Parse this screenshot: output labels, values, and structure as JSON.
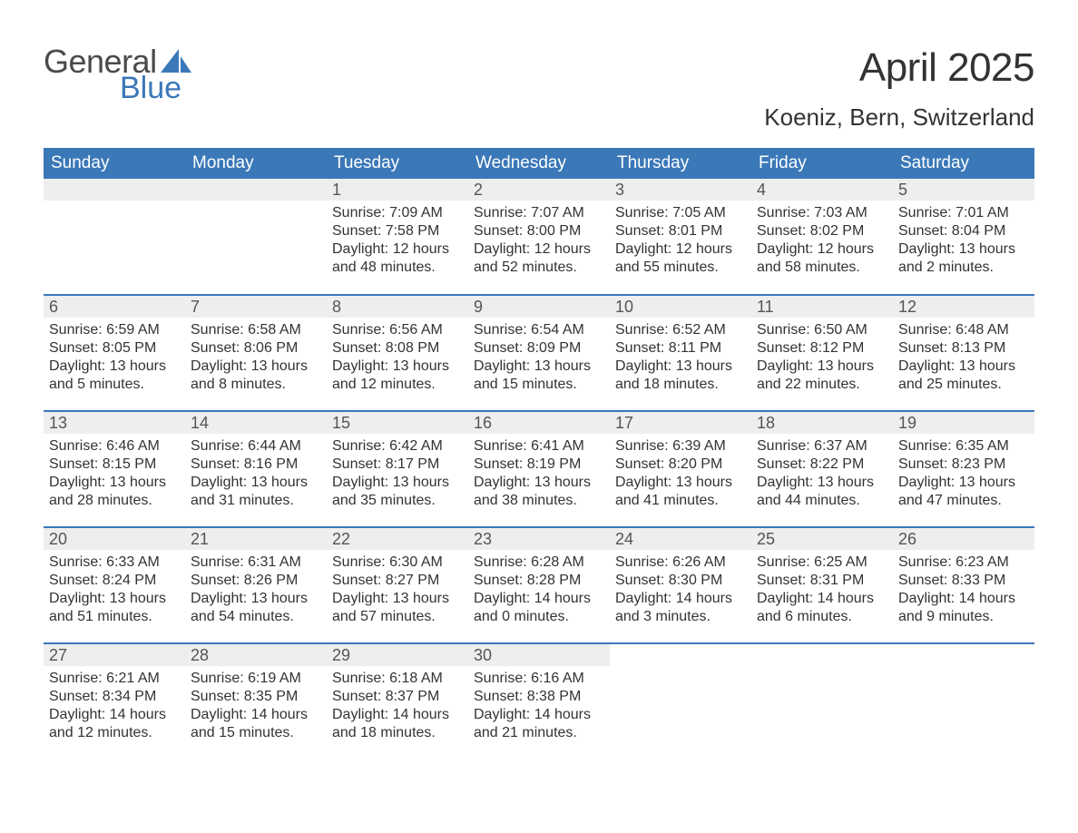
{
  "logo": {
    "word1": "General",
    "word2": "Blue"
  },
  "title": {
    "month": "April 2025",
    "location": "Koeniz, Bern, Switzerland"
  },
  "style": {
    "header_bg": "#3b78b8",
    "header_text": "#ffffff",
    "daynum_bg": "#eeeeee",
    "row_border": "#3b78b8",
    "body_text": "#333333",
    "logo_gray": "#4a4a4a",
    "logo_blue": "#3b78b8",
    "page_bg": "#ffffff",
    "title_fontsize": 44,
    "location_fontsize": 26,
    "dayheader_fontsize": 19,
    "daynum_fontsize": 18,
    "body_fontsize": 16
  },
  "day_headers": [
    "Sunday",
    "Monday",
    "Tuesday",
    "Wednesday",
    "Thursday",
    "Friday",
    "Saturday"
  ],
  "weeks": [
    [
      {
        "n": "",
        "blank": true
      },
      {
        "n": "",
        "blank": true
      },
      {
        "n": "1",
        "sunrise": "Sunrise: 7:09 AM",
        "sunset": "Sunset: 7:58 PM",
        "daylight": "Daylight: 12 hours and 48 minutes."
      },
      {
        "n": "2",
        "sunrise": "Sunrise: 7:07 AM",
        "sunset": "Sunset: 8:00 PM",
        "daylight": "Daylight: 12 hours and 52 minutes."
      },
      {
        "n": "3",
        "sunrise": "Sunrise: 7:05 AM",
        "sunset": "Sunset: 8:01 PM",
        "daylight": "Daylight: 12 hours and 55 minutes."
      },
      {
        "n": "4",
        "sunrise": "Sunrise: 7:03 AM",
        "sunset": "Sunset: 8:02 PM",
        "daylight": "Daylight: 12 hours and 58 minutes."
      },
      {
        "n": "5",
        "sunrise": "Sunrise: 7:01 AM",
        "sunset": "Sunset: 8:04 PM",
        "daylight": "Daylight: 13 hours and 2 minutes."
      }
    ],
    [
      {
        "n": "6",
        "sunrise": "Sunrise: 6:59 AM",
        "sunset": "Sunset: 8:05 PM",
        "daylight": "Daylight: 13 hours and 5 minutes."
      },
      {
        "n": "7",
        "sunrise": "Sunrise: 6:58 AM",
        "sunset": "Sunset: 8:06 PM",
        "daylight": "Daylight: 13 hours and 8 minutes."
      },
      {
        "n": "8",
        "sunrise": "Sunrise: 6:56 AM",
        "sunset": "Sunset: 8:08 PM",
        "daylight": "Daylight: 13 hours and 12 minutes."
      },
      {
        "n": "9",
        "sunrise": "Sunrise: 6:54 AM",
        "sunset": "Sunset: 8:09 PM",
        "daylight": "Daylight: 13 hours and 15 minutes."
      },
      {
        "n": "10",
        "sunrise": "Sunrise: 6:52 AM",
        "sunset": "Sunset: 8:11 PM",
        "daylight": "Daylight: 13 hours and 18 minutes."
      },
      {
        "n": "11",
        "sunrise": "Sunrise: 6:50 AM",
        "sunset": "Sunset: 8:12 PM",
        "daylight": "Daylight: 13 hours and 22 minutes."
      },
      {
        "n": "12",
        "sunrise": "Sunrise: 6:48 AM",
        "sunset": "Sunset: 8:13 PM",
        "daylight": "Daylight: 13 hours and 25 minutes."
      }
    ],
    [
      {
        "n": "13",
        "sunrise": "Sunrise: 6:46 AM",
        "sunset": "Sunset: 8:15 PM",
        "daylight": "Daylight: 13 hours and 28 minutes."
      },
      {
        "n": "14",
        "sunrise": "Sunrise: 6:44 AM",
        "sunset": "Sunset: 8:16 PM",
        "daylight": "Daylight: 13 hours and 31 minutes."
      },
      {
        "n": "15",
        "sunrise": "Sunrise: 6:42 AM",
        "sunset": "Sunset: 8:17 PM",
        "daylight": "Daylight: 13 hours and 35 minutes."
      },
      {
        "n": "16",
        "sunrise": "Sunrise: 6:41 AM",
        "sunset": "Sunset: 8:19 PM",
        "daylight": "Daylight: 13 hours and 38 minutes."
      },
      {
        "n": "17",
        "sunrise": "Sunrise: 6:39 AM",
        "sunset": "Sunset: 8:20 PM",
        "daylight": "Daylight: 13 hours and 41 minutes."
      },
      {
        "n": "18",
        "sunrise": "Sunrise: 6:37 AM",
        "sunset": "Sunset: 8:22 PM",
        "daylight": "Daylight: 13 hours and 44 minutes."
      },
      {
        "n": "19",
        "sunrise": "Sunrise: 6:35 AM",
        "sunset": "Sunset: 8:23 PM",
        "daylight": "Daylight: 13 hours and 47 minutes."
      }
    ],
    [
      {
        "n": "20",
        "sunrise": "Sunrise: 6:33 AM",
        "sunset": "Sunset: 8:24 PM",
        "daylight": "Daylight: 13 hours and 51 minutes."
      },
      {
        "n": "21",
        "sunrise": "Sunrise: 6:31 AM",
        "sunset": "Sunset: 8:26 PM",
        "daylight": "Daylight: 13 hours and 54 minutes."
      },
      {
        "n": "22",
        "sunrise": "Sunrise: 6:30 AM",
        "sunset": "Sunset: 8:27 PM",
        "daylight": "Daylight: 13 hours and 57 minutes."
      },
      {
        "n": "23",
        "sunrise": "Sunrise: 6:28 AM",
        "sunset": "Sunset: 8:28 PM",
        "daylight": "Daylight: 14 hours and 0 minutes."
      },
      {
        "n": "24",
        "sunrise": "Sunrise: 6:26 AM",
        "sunset": "Sunset: 8:30 PM",
        "daylight": "Daylight: 14 hours and 3 minutes."
      },
      {
        "n": "25",
        "sunrise": "Sunrise: 6:25 AM",
        "sunset": "Sunset: 8:31 PM",
        "daylight": "Daylight: 14 hours and 6 minutes."
      },
      {
        "n": "26",
        "sunrise": "Sunrise: 6:23 AM",
        "sunset": "Sunset: 8:33 PM",
        "daylight": "Daylight: 14 hours and 9 minutes."
      }
    ],
    [
      {
        "n": "27",
        "sunrise": "Sunrise: 6:21 AM",
        "sunset": "Sunset: 8:34 PM",
        "daylight": "Daylight: 14 hours and 12 minutes."
      },
      {
        "n": "28",
        "sunrise": "Sunrise: 6:19 AM",
        "sunset": "Sunset: 8:35 PM",
        "daylight": "Daylight: 14 hours and 15 minutes."
      },
      {
        "n": "29",
        "sunrise": "Sunrise: 6:18 AM",
        "sunset": "Sunset: 8:37 PM",
        "daylight": "Daylight: 14 hours and 18 minutes."
      },
      {
        "n": "30",
        "sunrise": "Sunrise: 6:16 AM",
        "sunset": "Sunset: 8:38 PM",
        "daylight": "Daylight: 14 hours and 21 minutes."
      },
      {
        "n": "",
        "trailing": true
      },
      {
        "n": "",
        "trailing": true
      },
      {
        "n": "",
        "trailing": true
      }
    ]
  ]
}
